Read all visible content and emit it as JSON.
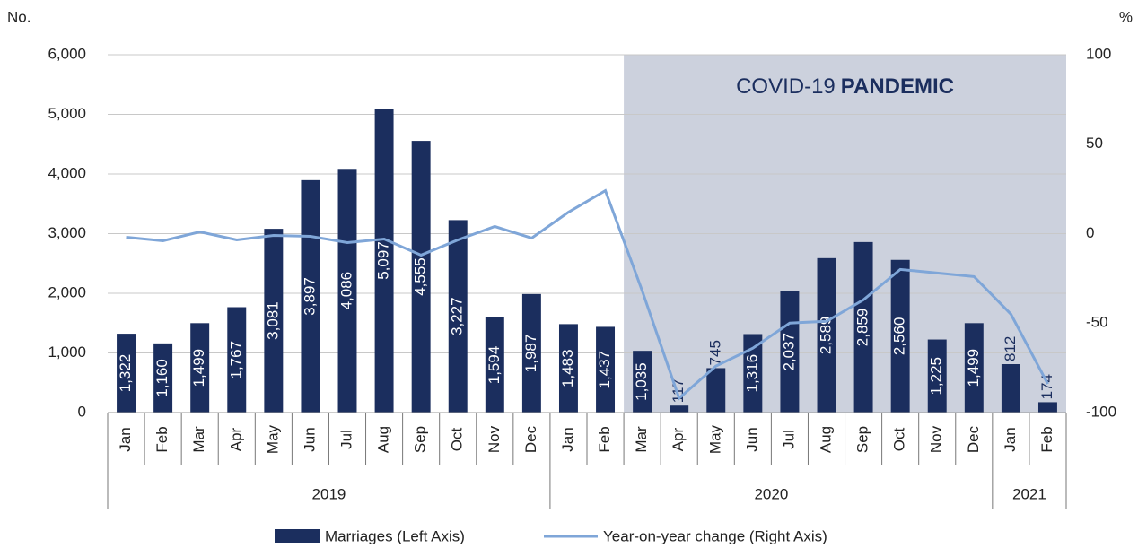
{
  "chart_data": {
    "type": "bar-line",
    "y_label": "No.",
    "y2_label": "%",
    "categories": [
      "Jan",
      "Feb",
      "Mar",
      "Apr",
      "May",
      "Jun",
      "Jul",
      "Aug",
      "Sep",
      "Oct",
      "Nov",
      "Dec",
      "Jan",
      "Feb",
      "Mar",
      "Apr",
      "May",
      "Jun",
      "Jul",
      "Aug",
      "Sep",
      "Oct",
      "Nov",
      "Dec",
      "Jan",
      "Feb"
    ],
    "groups": [
      {
        "label": "2019",
        "count": 12
      },
      {
        "label": "2020",
        "count": 12
      },
      {
        "label": "2021",
        "count": 2
      }
    ],
    "series": [
      {
        "name": "Marriages (Left Axis)",
        "color": "#1b2e5e",
        "kind": "bar",
        "values": [
          1322,
          1160,
          1499,
          1767,
          3081,
          3897,
          4086,
          5097,
          4555,
          3227,
          1594,
          1987,
          1483,
          1437,
          1035,
          117,
          745,
          1316,
          2037,
          2589,
          2859,
          2560,
          1225,
          1499,
          812,
          174
        ],
        "value_labels": [
          "1,322",
          "1,160",
          "1,499",
          "1,767",
          "3,081",
          "3,897",
          "4,086",
          "5,097",
          "4,555",
          "3,227",
          "1,594",
          "1,987",
          "1,483",
          "1,437",
          "1,035",
          "117",
          "745",
          "1,316",
          "2,037",
          "2,589",
          "2,859",
          "2,560",
          "1,225",
          "1,499",
          "812",
          "174"
        ]
      },
      {
        "name": "Year-on-year change (Right Axis)",
        "color": "#7fa6d8",
        "kind": "line",
        "axis": "y2",
        "values": [
          -2,
          -4,
          1,
          -3.5,
          -1,
          -1.5,
          -5,
          -3,
          -12,
          -3.5,
          4,
          -2.5,
          12,
          24,
          -32,
          -92,
          -74,
          -64,
          -50,
          -49,
          -37,
          -20,
          -22,
          -24,
          -45,
          -84
        ]
      }
    ],
    "ylim": [
      0,
      6000
    ],
    "yticks": [
      0,
      {
        "value": 1000,
        "label": "1,000"
      },
      {
        "value": 2000,
        "label": "2,000"
      },
      {
        "value": 3000,
        "label": "3,000"
      },
      {
        "value": 4000,
        "label": "4,000"
      },
      {
        "value": 5000,
        "label": "5,000"
      },
      {
        "value": 6000,
        "label": "6,000"
      }
    ],
    "y2lim": [
      -100,
      100
    ],
    "y2ticks": [
      -100,
      -50,
      0,
      50,
      100
    ],
    "grid": true,
    "annotation": {
      "text": "COVID-19",
      "bold_text": "PANDEMIC",
      "start_index": 14,
      "color": "#ccd1dd"
    }
  }
}
